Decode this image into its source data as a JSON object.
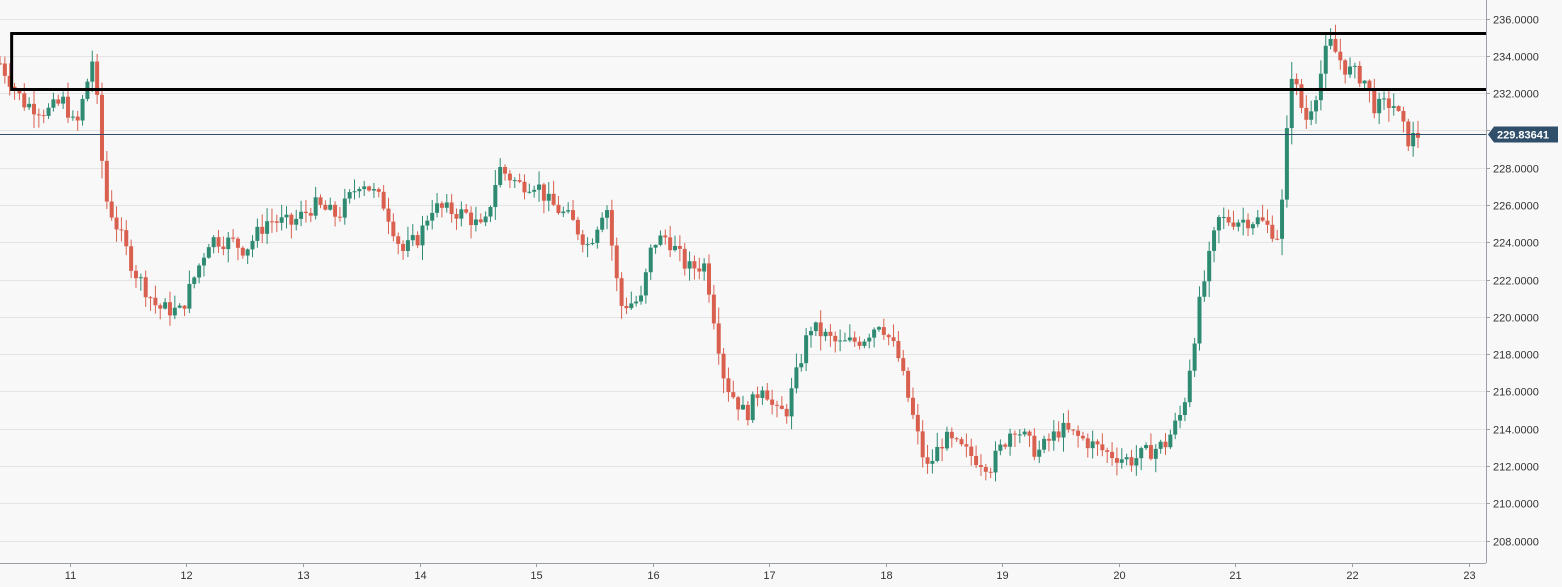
{
  "chart_data": {
    "type": "candlestick",
    "title": "",
    "xlabel": "",
    "ylabel": "",
    "ylim": [
      206.8,
      237.0
    ],
    "xlim": [
      10.4,
      23.15
    ],
    "grid": true,
    "x_ticks": [
      {
        "value": 11,
        "label": "11"
      },
      {
        "value": 12,
        "label": "12"
      },
      {
        "value": 13,
        "label": "13"
      },
      {
        "value": 14,
        "label": "14"
      },
      {
        "value": 15,
        "label": "15"
      },
      {
        "value": 16,
        "label": "16"
      },
      {
        "value": 17,
        "label": "17"
      },
      {
        "value": 18,
        "label": "18"
      },
      {
        "value": 19,
        "label": "19"
      },
      {
        "value": 20,
        "label": "20"
      },
      {
        "value": 21,
        "label": "21"
      },
      {
        "value": 22,
        "label": "22"
      },
      {
        "value": 23,
        "label": "23"
      }
    ],
    "y_ticks": [
      {
        "value": 208,
        "label": "208.0000"
      },
      {
        "value": 210,
        "label": "210.0000"
      },
      {
        "value": 212,
        "label": "212.0000"
      },
      {
        "value": 214,
        "label": "214.0000"
      },
      {
        "value": 216,
        "label": "216.0000"
      },
      {
        "value": 218,
        "label": "218.0000"
      },
      {
        "value": 220,
        "label": "220.0000"
      },
      {
        "value": 222,
        "label": "222.0000"
      },
      {
        "value": 224,
        "label": "224.0000"
      },
      {
        "value": 226,
        "label": "226.0000"
      },
      {
        "value": 228,
        "label": "228.0000"
      },
      {
        "value": 230,
        "label": "230.0000"
      },
      {
        "value": 232,
        "label": "232.0000"
      },
      {
        "value": 234,
        "label": "234.0000"
      },
      {
        "value": 236,
        "label": "236.0000"
      }
    ],
    "current_price": {
      "value": 229.83641,
      "label": "229.83641"
    },
    "zone": {
      "from": 232.2,
      "to": 235.2,
      "start_x": 10.5
    },
    "colors": {
      "up": "#2e8b72",
      "down": "#d9604e",
      "zone": "#000000",
      "price_line": "#2f4f6b",
      "price_tag": "#2f4f6b",
      "grid": "#e4e4e6",
      "background": "#f8f8f9"
    },
    "anchors": [
      [
        10.4,
        233.6
      ],
      [
        10.6,
        231.5
      ],
      [
        10.8,
        231.0
      ],
      [
        10.95,
        231.6
      ],
      [
        11.05,
        230.0
      ],
      [
        11.2,
        234.0
      ],
      [
        11.3,
        226.5
      ],
      [
        11.55,
        222.5
      ],
      [
        11.75,
        220.5
      ],
      [
        11.95,
        220.3
      ],
      [
        12.2,
        224.2
      ],
      [
        12.4,
        224.0
      ],
      [
        12.5,
        223.6
      ],
      [
        12.7,
        225.2
      ],
      [
        12.9,
        225.0
      ],
      [
        13.1,
        226.0
      ],
      [
        13.3,
        225.4
      ],
      [
        13.5,
        227.4
      ],
      [
        13.7,
        226.0
      ],
      [
        13.85,
        223.5
      ],
      [
        14.0,
        224.3
      ],
      [
        14.1,
        225.9
      ],
      [
        14.4,
        225.5
      ],
      [
        14.55,
        224.6
      ],
      [
        14.68,
        228.0
      ],
      [
        14.85,
        227.1
      ],
      [
        15.0,
        227.2
      ],
      [
        15.1,
        226.2
      ],
      [
        15.3,
        225.2
      ],
      [
        15.45,
        223.8
      ],
      [
        15.6,
        226.2
      ],
      [
        15.72,
        220.6
      ],
      [
        15.9,
        220.9
      ],
      [
        16.0,
        224.0
      ],
      [
        16.12,
        224.3
      ],
      [
        16.3,
        222.6
      ],
      [
        16.45,
        222.8
      ],
      [
        16.62,
        216.5
      ],
      [
        16.8,
        214.7
      ],
      [
        16.95,
        216.5
      ],
      [
        17.05,
        214.8
      ],
      [
        17.15,
        215.0
      ],
      [
        17.35,
        219.5
      ],
      [
        17.6,
        218.5
      ],
      [
        17.8,
        218.8
      ],
      [
        17.95,
        219.8
      ],
      [
        18.1,
        218.0
      ],
      [
        18.25,
        214.2
      ],
      [
        18.35,
        211.8
      ],
      [
        18.5,
        213.5
      ],
      [
        18.75,
        212.5
      ],
      [
        18.9,
        212.0
      ],
      [
        19.1,
        214.2
      ],
      [
        19.3,
        212.7
      ],
      [
        19.5,
        214.0
      ],
      [
        19.7,
        213.4
      ],
      [
        19.9,
        212.7
      ],
      [
        20.1,
        212.3
      ],
      [
        20.4,
        213.2
      ],
      [
        20.55,
        215.0
      ],
      [
        20.7,
        221.0
      ],
      [
        20.85,
        225.2
      ],
      [
        21.2,
        225.2
      ],
      [
        21.38,
        224.3
      ],
      [
        21.48,
        233.2
      ],
      [
        21.6,
        230.5
      ],
      [
        21.7,
        232.2
      ],
      [
        21.8,
        234.8
      ],
      [
        21.95,
        233.3
      ],
      [
        22.1,
        232.8
      ],
      [
        22.2,
        231.2
      ],
      [
        22.35,
        231.5
      ],
      [
        22.48,
        229.5
      ],
      [
        22.6,
        229.83641
      ]
    ]
  }
}
